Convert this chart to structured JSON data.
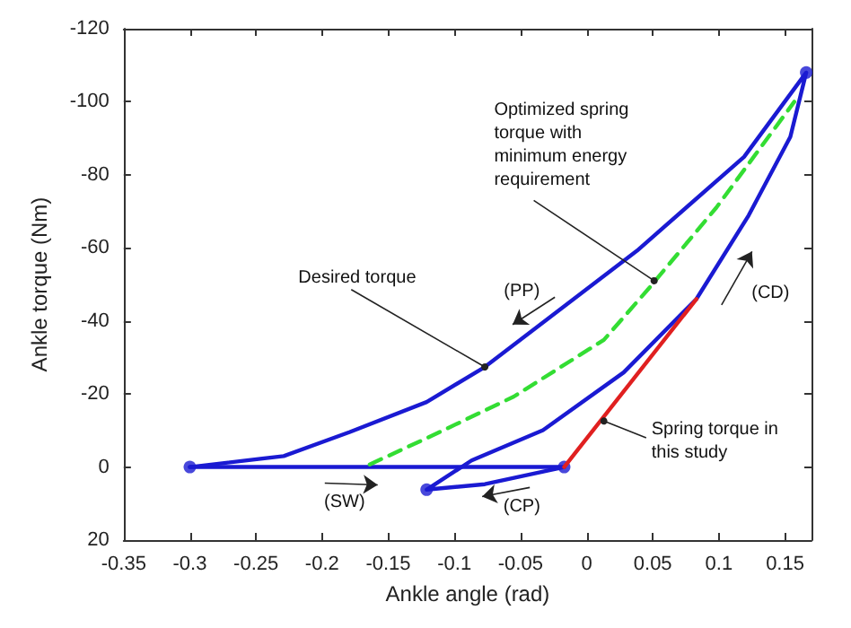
{
  "chart_data": {
    "type": "line",
    "xlabel": "Ankle angle (rad)",
    "ylabel": "Ankle torque (Nm)",
    "xlim": [
      -0.35,
      0.17
    ],
    "xticks": [
      -0.35,
      -0.3,
      -0.25,
      -0.2,
      -0.15,
      -0.1,
      -0.05,
      0,
      0.05,
      0.1,
      0.15
    ],
    "ylim": [
      20,
      -120
    ],
    "yticks": [
      -120,
      -100,
      -80,
      -60,
      -40,
      -20,
      0,
      20
    ],
    "grid": false,
    "series": [
      {
        "color": "#1a1ad2",
        "marker": "none",
        "line_style": "solid",
        "x": [
          -0.3,
          -0.017
        ],
        "values": [
          0,
          0
        ]
      },
      {
        "color": "#1a1ad2",
        "marker": "none",
        "line_style": "solid",
        "x": [
          -0.017,
          -0.077,
          -0.121,
          -0.087,
          -0.033,
          0.028,
          0.083,
          0.1225,
          0.154,
          0.166,
          0.119,
          0.038,
          -0.077,
          -0.121,
          -0.179,
          -0.229,
          -0.3
        ],
        "values": [
          0,
          4.7,
          6.2,
          -1.8,
          -10.1,
          -25.9,
          -46,
          -68.9,
          -90.4,
          -108,
          -84.9,
          -59.2,
          -27.4,
          -17.8,
          -9.6,
          -3,
          0
        ]
      },
      {
        "color": "#e02020",
        "marker": "none",
        "line_style": "solid",
        "x": [
          -0.017,
          0.083
        ],
        "values": [
          0,
          -46
        ]
      },
      {
        "color": "#33dd33",
        "marker": "none",
        "line_style": "dashed",
        "x": [
          -0.164,
          -0.115,
          -0.055,
          0.013,
          0.047,
          0.098,
          0.157
        ],
        "values": [
          -0.7,
          -8.9,
          -19.3,
          -34.8,
          -48.9,
          -71,
          -100
        ]
      },
      {
        "type": "scatter",
        "color": "#1a1ad2",
        "marker": "circle",
        "x": [
          -0.3,
          -0.017,
          -0.121,
          0.166
        ],
        "values": [
          0,
          0,
          6.2,
          -108
        ]
      }
    ],
    "annotations": [
      {
        "text": "Desired torque",
        "x": -0.077,
        "y": -27.4
      },
      {
        "text": "Optimized spring torque with minimum energy requirement",
        "x": 0.051,
        "y": -51
      },
      {
        "text": "Spring torque in this study",
        "x": 0.013,
        "y": -12.6
      },
      "(PP)",
      "(CD)",
      "(SW)",
      "(CP)"
    ]
  }
}
